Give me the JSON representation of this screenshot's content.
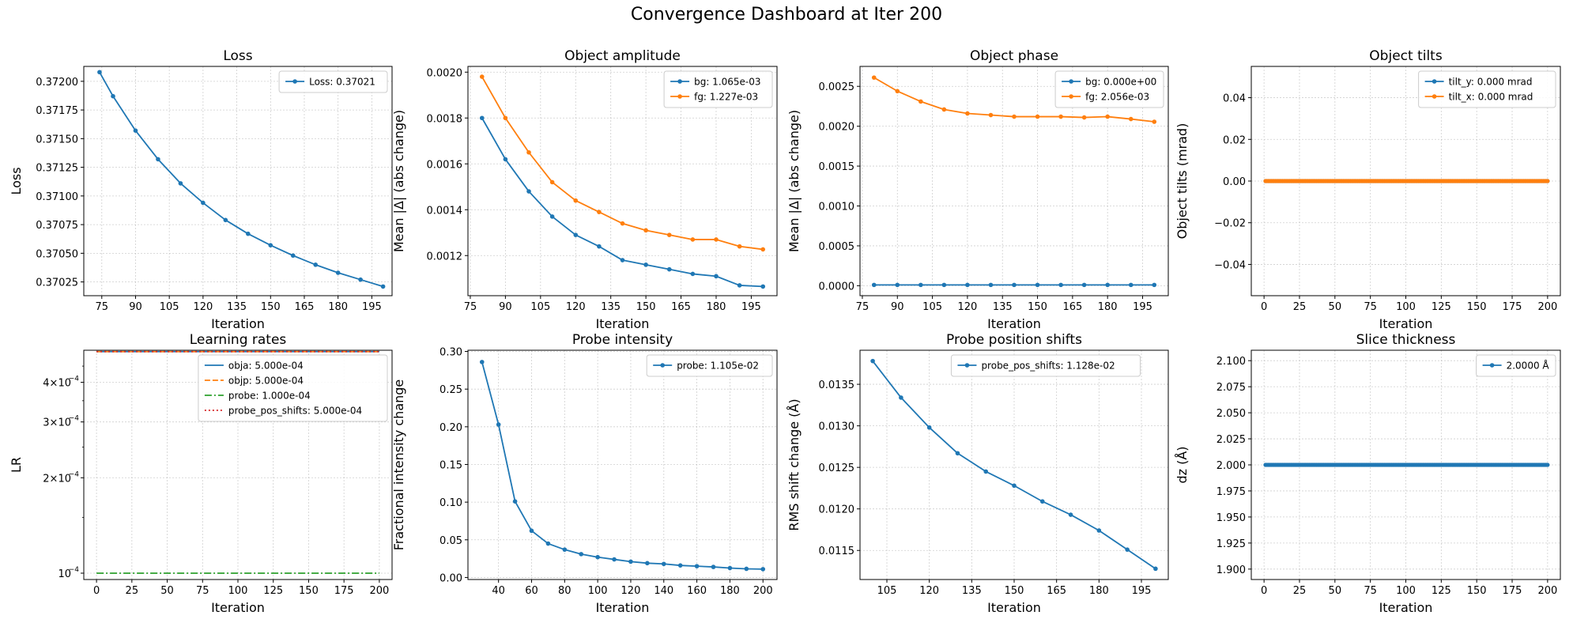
{
  "suptitle": "Convergence Dashboard at Iter 200",
  "chart_data": [
    {
      "type": "line",
      "title": "Loss",
      "xlabel": "Iteration",
      "ylabel": "Loss",
      "xlim": [
        67,
        204
      ],
      "ylim": [
        0.37013,
        0.37213
      ],
      "xticks": [
        75,
        90,
        105,
        120,
        135,
        150,
        165,
        180,
        195
      ],
      "yticks": [
        0.37025,
        0.3705,
        0.37075,
        0.371,
        0.37125,
        0.3715,
        0.37175,
        0.372
      ],
      "ytick_labels": [
        "0.37025",
        "0.37050",
        "0.37075",
        "0.37100",
        "0.37125",
        "0.37150",
        "0.37175",
        "0.37200"
      ],
      "grid": true,
      "legend_placement": "top-right",
      "series": [
        {
          "name": "Loss: 0.37021",
          "color": "#1f77b4",
          "style": "solid",
          "marker": true,
          "x": [
            74,
            80,
            90,
            100,
            110,
            120,
            130,
            140,
            150,
            160,
            170,
            180,
            190,
            200
          ],
          "y": [
            0.37208,
            0.37187,
            0.37157,
            0.37132,
            0.37111,
            0.37094,
            0.37079,
            0.37067,
            0.37057,
            0.37048,
            0.3704,
            0.37033,
            0.37027,
            0.37021
          ]
        }
      ]
    },
    {
      "type": "line",
      "title": "Object amplitude",
      "xlabel": "Iteration",
      "ylabel": "Mean |Δ| (abs change)",
      "xlim": [
        74,
        206
      ],
      "ylim": [
        0.001025,
        0.002025
      ],
      "xticks": [
        75,
        90,
        105,
        120,
        135,
        150,
        165,
        180,
        195
      ],
      "yticks": [
        0.0012,
        0.0014,
        0.0016,
        0.0018,
        0.002
      ],
      "ytick_labels": [
        "0.0012",
        "0.0014",
        "0.0016",
        "0.0018",
        "0.0020"
      ],
      "grid": true,
      "legend_placement": "top-right",
      "series": [
        {
          "name": "bg: 1.065e-03",
          "color": "#1f77b4",
          "style": "solid",
          "marker": true,
          "x": [
            80,
            90,
            100,
            110,
            120,
            130,
            140,
            150,
            160,
            170,
            180,
            190,
            200
          ],
          "y": [
            0.0018,
            0.00162,
            0.00148,
            0.00137,
            0.00129,
            0.00124,
            0.00118,
            0.00116,
            0.00114,
            0.00112,
            0.00111,
            0.00107,
            0.001065
          ]
        },
        {
          "name": "fg: 1.227e-03",
          "color": "#ff7f0e",
          "style": "solid",
          "marker": true,
          "x": [
            80,
            90,
            100,
            110,
            120,
            130,
            140,
            150,
            160,
            170,
            180,
            190,
            200
          ],
          "y": [
            0.00198,
            0.0018,
            0.00165,
            0.00152,
            0.00144,
            0.00139,
            0.00134,
            0.00131,
            0.00129,
            0.00127,
            0.00127,
            0.00124,
            0.001227
          ]
        }
      ]
    },
    {
      "type": "line",
      "title": "Object phase",
      "xlabel": "Iteration",
      "ylabel": "Mean |Δ| (abs change)",
      "xlim": [
        74,
        206
      ],
      "ylim": [
        -0.000125,
        0.00275
      ],
      "xticks": [
        75,
        90,
        105,
        120,
        135,
        150,
        165,
        180,
        195
      ],
      "yticks": [
        0,
        0.0005,
        0.001,
        0.0015,
        0.002,
        0.0025
      ],
      "ytick_labels": [
        "0.0000",
        "0.0005",
        "0.0010",
        "0.0015",
        "0.0020",
        "0.0025"
      ],
      "grid": true,
      "legend_placement": "top-right",
      "series": [
        {
          "name": "bg: 0.000e+00",
          "color": "#1f77b4",
          "style": "solid",
          "marker": true,
          "x": [
            80,
            90,
            100,
            110,
            120,
            130,
            140,
            150,
            160,
            170,
            180,
            190,
            200
          ],
          "y": [
            1e-05,
            1e-05,
            1e-05,
            1e-05,
            1e-05,
            1e-05,
            1e-05,
            1e-05,
            1e-05,
            1e-05,
            1e-05,
            1e-05,
            1e-05
          ]
        },
        {
          "name": "fg: 2.056e-03",
          "color": "#ff7f0e",
          "style": "solid",
          "marker": true,
          "x": [
            80,
            90,
            100,
            110,
            120,
            130,
            140,
            150,
            160,
            170,
            180,
            190,
            200
          ],
          "y": [
            0.00261,
            0.00244,
            0.00231,
            0.00221,
            0.00216,
            0.00214,
            0.00212,
            0.00212,
            0.00212,
            0.00211,
            0.00212,
            0.00209,
            0.002056
          ]
        }
      ]
    },
    {
      "type": "line",
      "title": "Object tilts",
      "xlabel": "Iteration",
      "ylabel": "Object tilts (mrad)",
      "xlim": [
        -9,
        209
      ],
      "ylim": [
        -0.055,
        0.055
      ],
      "xticks": [
        0,
        25,
        50,
        75,
        100,
        125,
        150,
        175,
        200
      ],
      "yticks": [
        -0.04,
        -0.02,
        0,
        0.02,
        0.04
      ],
      "ytick_labels": [
        "−0.04",
        "−0.02",
        "0.00",
        "0.02",
        "0.04"
      ],
      "grid": true,
      "legend_placement": "top-right",
      "dense_markers": true,
      "series": [
        {
          "name": "tilt_y: 0.000 mrad",
          "color": "#1f77b4",
          "style": "solid",
          "marker": true,
          "x_from": 1,
          "x_to": 200,
          "value": 0
        },
        {
          "name": "tilt_x: 0.000 mrad",
          "color": "#ff7f0e",
          "style": "solid",
          "marker": true,
          "x_from": 1,
          "x_to": 200,
          "value": 0
        }
      ]
    },
    {
      "type": "line",
      "title": "Learning rates",
      "xlabel": "Iteration",
      "ylabel": "LR",
      "yscale": "log",
      "xlim": [
        -9,
        209
      ],
      "ylim": [
        9.55e-05,
        0.000505
      ],
      "xticks": [
        0,
        25,
        50,
        75,
        100,
        125,
        150,
        175,
        200
      ],
      "yticks": [
        0.0001,
        0.0002,
        0.0003,
        0.0004
      ],
      "ytick_labels": [
        [
          "10",
          "−4"
        ],
        [
          "2×10",
          "−4"
        ],
        [
          "3×10",
          "−4"
        ],
        [
          "4×10",
          "−4"
        ]
      ],
      "grid": true,
      "legend_placement": "top-right",
      "series": [
        {
          "name": "obja: 5.000e-04",
          "color": "#1f77b4",
          "style": "solid",
          "marker": false,
          "x": [
            0,
            200
          ],
          "y": [
            0.0005,
            0.0005
          ]
        },
        {
          "name": "objp: 5.000e-04",
          "color": "#ff7f0e",
          "style": "dashed",
          "marker": false,
          "x": [
            0,
            200
          ],
          "y": [
            0.0005,
            0.0005
          ]
        },
        {
          "name": "probe: 1.000e-04",
          "color": "#2ca02c",
          "style": "dashdot",
          "marker": false,
          "x": [
            0,
            200
          ],
          "y": [
            0.0001,
            0.0001
          ]
        },
        {
          "name": "probe_pos_shifts: 5.000e-04",
          "color": "#d62728",
          "style": "dotted",
          "marker": false,
          "x": [
            0,
            200
          ],
          "y": [
            0.0005,
            0.0005
          ]
        }
      ]
    },
    {
      "type": "line",
      "title": "Probe intensity",
      "xlabel": "Iteration",
      "ylabel": "Fractional intensity change",
      "xlim": [
        21.5,
        208.5
      ],
      "ylim": [
        -0.0027,
        0.3016
      ],
      "xticks": [
        40,
        60,
        80,
        100,
        120,
        140,
        160,
        180,
        200
      ],
      "yticks": [
        0,
        0.05,
        0.1,
        0.15,
        0.2,
        0.25,
        0.3
      ],
      "ytick_labels": [
        "0.00",
        "0.05",
        "0.10",
        "0.15",
        "0.20",
        "0.25",
        "0.30"
      ],
      "grid": true,
      "legend_placement": "top-right",
      "series": [
        {
          "name": "probe: 1.105e-02",
          "color": "#1f77b4",
          "style": "solid",
          "marker": true,
          "x": [
            30,
            40,
            50,
            60,
            70,
            80,
            90,
            100,
            110,
            120,
            130,
            140,
            150,
            160,
            170,
            180,
            190,
            200
          ],
          "y": [
            0.286,
            0.203,
            0.101,
            0.062,
            0.045,
            0.037,
            0.031,
            0.027,
            0.024,
            0.021,
            0.019,
            0.018,
            0.016,
            0.015,
            0.014,
            0.0125,
            0.0115,
            0.01105
          ]
        }
      ]
    },
    {
      "type": "line",
      "title": "Probe position shifts",
      "xlabel": "Iteration",
      "ylabel": "RMS shift change (Å)",
      "xlim": [
        95.5,
        204.5
      ],
      "ylim": [
        0.01115,
        0.01391
      ],
      "xticks": [
        105,
        120,
        135,
        150,
        165,
        180,
        195
      ],
      "yticks": [
        0.0115,
        0.012,
        0.0125,
        0.013,
        0.0135
      ],
      "ytick_labels": [
        "0.0115",
        "0.0120",
        "0.0125",
        "0.0130",
        "0.0135"
      ],
      "grid": true,
      "legend_placement": "top-center",
      "series": [
        {
          "name": "probe_pos_shifts: 1.128e-02",
          "color": "#1f77b4",
          "style": "solid",
          "marker": true,
          "x": [
            100,
            110,
            120,
            130,
            140,
            150,
            160,
            170,
            180,
            190,
            200
          ],
          "y": [
            0.01378,
            0.01334,
            0.01298,
            0.01267,
            0.01245,
            0.01228,
            0.01209,
            0.01193,
            0.01174,
            0.01151,
            0.01128
          ]
        }
      ]
    },
    {
      "type": "line",
      "title": "Slice thickness",
      "xlabel": "Iteration",
      "ylabel": "dz (Å)",
      "xlim": [
        -9,
        209
      ],
      "ylim": [
        1.89,
        2.11
      ],
      "xticks": [
        0,
        25,
        50,
        75,
        100,
        125,
        150,
        175,
        200
      ],
      "yticks": [
        1.9,
        1.925,
        1.95,
        1.975,
        2.0,
        2.025,
        2.05,
        2.075,
        2.1
      ],
      "ytick_labels": [
        "1.900",
        "1.925",
        "1.950",
        "1.975",
        "2.000",
        "2.025",
        "2.050",
        "2.075",
        "2.100"
      ],
      "grid": true,
      "legend_placement": "top-right",
      "dense_markers": true,
      "series": [
        {
          "name": "2.0000 Å",
          "color": "#1f77b4",
          "style": "solid",
          "marker": true,
          "x_from": 1,
          "x_to": 200,
          "value": 2.0
        }
      ]
    }
  ]
}
